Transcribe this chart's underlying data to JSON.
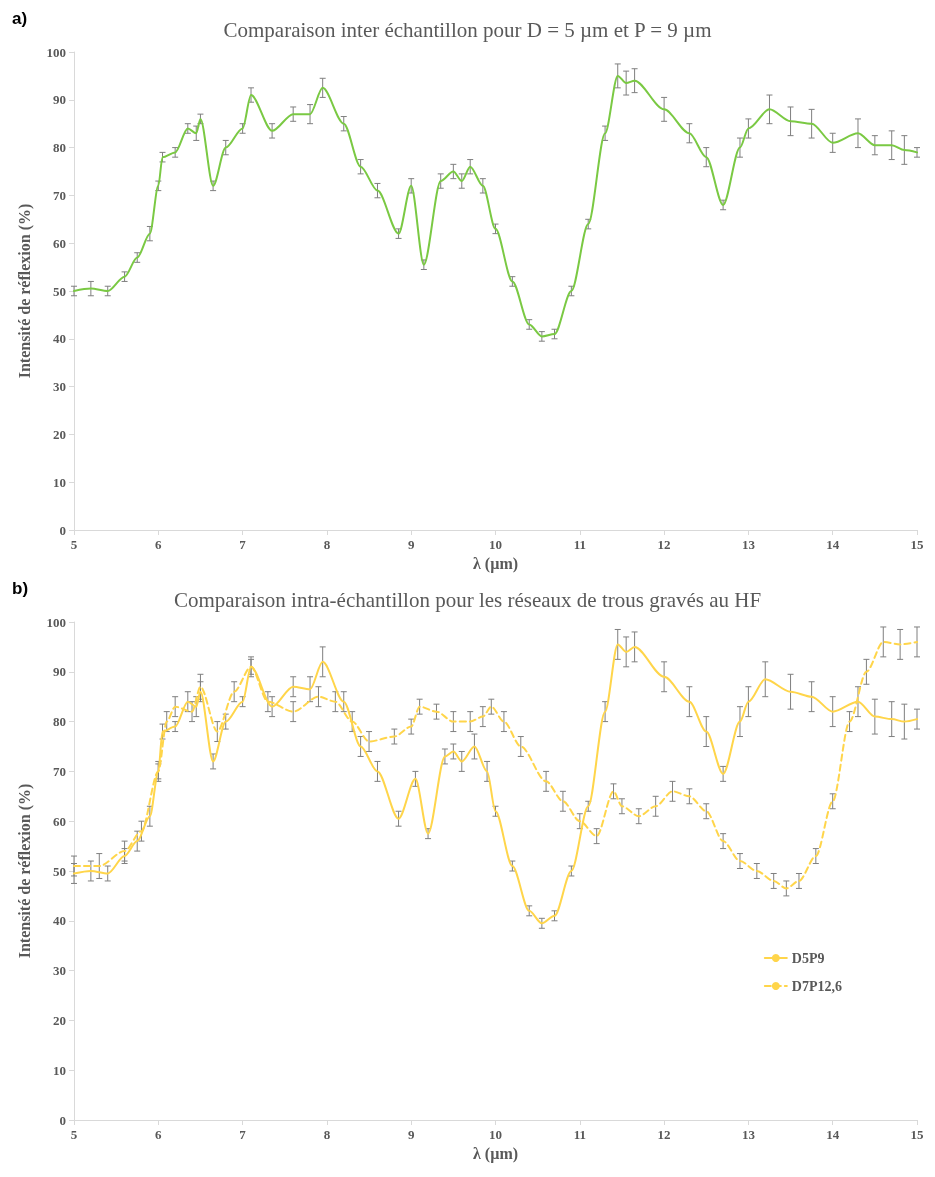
{
  "chart_data": [
    {
      "type": "line",
      "title": "Comparaison inter échantillon pour D = 5 µm et P = 9 µm",
      "xlabel": "λ (µm)",
      "ylabel": "Intensité de réflexion (%)",
      "annotations": [
        "a)"
      ],
      "xlim": [
        5,
        15
      ],
      "xticks": [
        5,
        6,
        7,
        8,
        9,
        10,
        11,
        12,
        13,
        14,
        15
      ],
      "ylim": [
        0,
        100
      ],
      "yticks": [
        0,
        10,
        20,
        30,
        40,
        50,
        60,
        70,
        80,
        90,
        100
      ],
      "grid": false,
      "legend": false,
      "marker": "none",
      "series": [
        {
          "color": "#7ac943",
          "line_style": "solid",
          "x": [
            5.0,
            5.2,
            5.4,
            5.6,
            5.75,
            5.9,
            6.0,
            6.05,
            6.2,
            6.35,
            6.45,
            6.5,
            6.65,
            6.8,
            7.0,
            7.1,
            7.35,
            7.6,
            7.8,
            7.95,
            8.2,
            8.4,
            8.6,
            8.85,
            9.0,
            9.15,
            9.35,
            9.5,
            9.6,
            9.7,
            9.85,
            10.0,
            10.2,
            10.4,
            10.55,
            10.7,
            10.9,
            11.1,
            11.3,
            11.45,
            11.55,
            11.65,
            12.0,
            12.3,
            12.5,
            12.7,
            12.9,
            13.0,
            13.25,
            13.5,
            13.75,
            14.0,
            14.3,
            14.5,
            14.7,
            14.85,
            15.0
          ],
          "values": [
            50,
            50.5,
            50,
            53,
            57,
            62,
            72,
            78,
            79,
            84,
            83,
            86,
            72,
            80,
            84,
            91,
            83.5,
            87,
            87,
            92.5,
            85,
            76,
            71,
            62,
            72,
            55.5,
            73,
            75,
            73,
            76,
            72,
            63,
            52,
            43,
            40.5,
            41,
            50,
            64,
            83,
            95,
            93.5,
            94,
            88,
            83,
            78,
            68,
            80,
            84,
            88,
            85.5,
            85,
            81,
            83,
            80.5,
            80.5,
            79.5,
            79
          ],
          "errors": [
            1,
            1.5,
            1,
            1,
            1,
            1.5,
            1,
            1,
            1,
            1,
            1.5,
            1,
            1,
            1.5,
            1,
            1.5,
            1.5,
            1.5,
            2,
            2,
            1.5,
            1.5,
            1.5,
            1,
            1.5,
            1,
            1.5,
            1.5,
            1.5,
            1.5,
            1.5,
            1,
            1,
            1,
            1,
            1,
            1,
            1,
            1.5,
            2.5,
            2.5,
            2.5,
            2.5,
            2,
            2,
            1,
            2,
            2,
            3,
            3,
            3,
            2,
            3,
            2,
            3,
            3,
            1
          ]
        }
      ]
    },
    {
      "type": "line",
      "title": "Comparaison intra-échantillon pour les réseaux de trous gravés au HF",
      "xlabel": "λ (µm)",
      "ylabel": "Intensité de réflexion (%)",
      "annotations": [
        "b)"
      ],
      "xlim": [
        5,
        15
      ],
      "xticks": [
        5,
        6,
        7,
        8,
        9,
        10,
        11,
        12,
        13,
        14,
        15
      ],
      "ylim": [
        0,
        100
      ],
      "yticks": [
        0,
        10,
        20,
        30,
        40,
        50,
        60,
        70,
        80,
        90,
        100
      ],
      "grid": false,
      "legend": "bottom right",
      "marker": "none",
      "series": [
        {
          "name": "D5P9",
          "color": "#ffd54a",
          "line_style": "solid",
          "x": [
            5.0,
            5.2,
            5.4,
            5.6,
            5.75,
            5.9,
            6.0,
            6.05,
            6.2,
            6.35,
            6.45,
            6.5,
            6.65,
            6.8,
            7.0,
            7.1,
            7.35,
            7.6,
            7.8,
            7.95,
            8.2,
            8.4,
            8.6,
            8.85,
            9.05,
            9.2,
            9.4,
            9.5,
            9.6,
            9.75,
            9.9,
            10.0,
            10.2,
            10.4,
            10.55,
            10.7,
            10.9,
            11.1,
            11.3,
            11.45,
            11.55,
            11.65,
            12.0,
            12.3,
            12.5,
            12.7,
            12.9,
            13.0,
            13.2,
            13.5,
            13.75,
            14.0,
            14.3,
            14.5,
            14.7,
            14.85,
            15.0
          ],
          "values": [
            49.5,
            50,
            49.5,
            53,
            56,
            61,
            70,
            78,
            79,
            84,
            83,
            86,
            72,
            80,
            84,
            91,
            83,
            87,
            86.5,
            92,
            84,
            75,
            70,
            60.5,
            68.5,
            57.5,
            73,
            74,
            72,
            75,
            70,
            62,
            51,
            42,
            39.5,
            41,
            50,
            63,
            82,
            95.5,
            94,
            95,
            89,
            84,
            78,
            69.5,
            80,
            84,
            88.5,
            86,
            85,
            82,
            84,
            81,
            80.5,
            80,
            80.5
          ],
          "errors": [
            2,
            2,
            1.5,
            1.5,
            2,
            2,
            1.5,
            1.5,
            1,
            2,
            2,
            2,
            1.5,
            1.5,
            1,
            1.5,
            2,
            2,
            2.5,
            3,
            2,
            2,
            2,
            1.5,
            1.5,
            1,
            1.5,
            1.5,
            2,
            2.5,
            2,
            1,
            1,
            1,
            1,
            1,
            1,
            1,
            2,
            3,
            3,
            3,
            3,
            3,
            3,
            1.5,
            3,
            3,
            3.5,
            3.5,
            3,
            3,
            3,
            3.5,
            3.5,
            3.5,
            2
          ]
        },
        {
          "name": "D7P12,6",
          "color": "#ffd54a",
          "line_style": "dashed",
          "x": [
            5.0,
            5.3,
            5.6,
            5.8,
            6.0,
            6.1,
            6.2,
            6.4,
            6.5,
            6.7,
            6.9,
            7.1,
            7.3,
            7.6,
            7.9,
            8.1,
            8.3,
            8.5,
            8.8,
            9.0,
            9.1,
            9.3,
            9.5,
            9.7,
            9.85,
            9.95,
            10.1,
            10.3,
            10.6,
            10.8,
            11.0,
            11.2,
            11.4,
            11.5,
            11.7,
            11.9,
            12.1,
            12.3,
            12.5,
            12.7,
            12.9,
            13.1,
            13.3,
            13.45,
            13.6,
            13.8,
            14.0,
            14.2,
            14.4,
            14.6,
            14.8,
            15.0
          ],
          "values": [
            51,
            51,
            54,
            58,
            70,
            80,
            83,
            82,
            87,
            78,
            86,
            91,
            84,
            82,
            85,
            84,
            80,
            76,
            77,
            79,
            83,
            82,
            80,
            80,
            81,
            83,
            80,
            75,
            68,
            64,
            60,
            57,
            66,
            63,
            61,
            63,
            66,
            65,
            62,
            56,
            52,
            50,
            48,
            46.5,
            48,
            53,
            64,
            80,
            90,
            96,
            95.5,
            96
          ],
          "errors": [
            2,
            2.5,
            2,
            2,
            2,
            2,
            2,
            2,
            2.5,
            2,
            2,
            2,
            2,
            2,
            2,
            2,
            2,
            2,
            1.5,
            1.5,
            1.5,
            1.5,
            2,
            2,
            2,
            1.5,
            2,
            2,
            2,
            2,
            1.5,
            1.5,
            1.5,
            1.5,
            1.5,
            2,
            2,
            1.5,
            1.5,
            1.5,
            1.5,
            1.5,
            1.5,
            1.5,
            1.5,
            1.5,
            1.5,
            2,
            2.5,
            3,
            3,
            3
          ]
        }
      ]
    }
  ]
}
